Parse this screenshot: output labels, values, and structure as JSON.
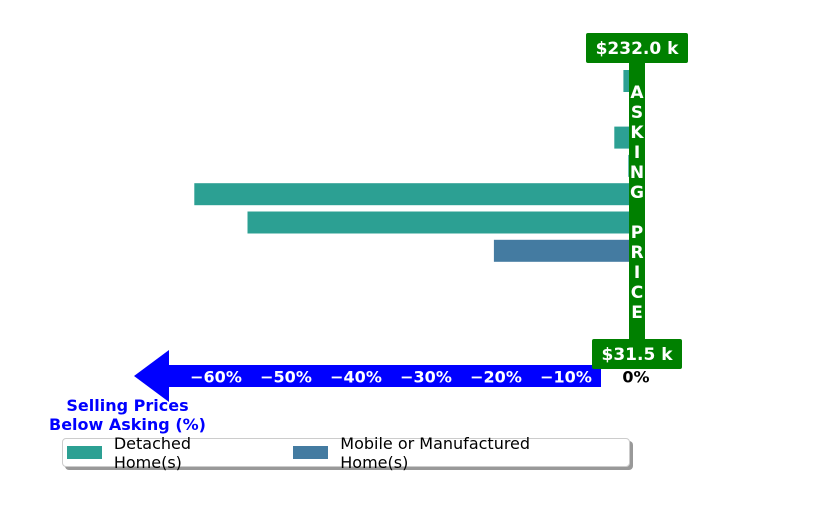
{
  "chart_data": {
    "type": "bar",
    "orientation": "horizontal",
    "title": "",
    "xlabel": "Selling Prices\nBelow Asking (%)",
    "xlim": [
      -0.67,
      0.0
    ],
    "xticks": [
      -0.6,
      -0.5,
      -0.4,
      -0.3,
      -0.2,
      -0.1,
      0.0
    ],
    "xtick_labels": [
      "−60%",
      "−50%",
      "−40%",
      "−30%",
      "−20%",
      "−10%",
      "0%"
    ],
    "grid": false,
    "legend_position": "bottom",
    "series": [
      {
        "name": "Detached Home(s)",
        "color": "#2ca093"
      },
      {
        "name": "Mobile or Manufactured Home(s)",
        "color": "#447ba1"
      }
    ],
    "bars": [
      {
        "series": 0,
        "value": -0.018
      },
      {
        "series": 0,
        "value": -0.004
      },
      {
        "series": 0,
        "value": -0.031
      },
      {
        "series": 0,
        "value": -0.011
      },
      {
        "series": 0,
        "value": -0.631
      },
      {
        "series": 0,
        "value": -0.555
      },
      {
        "series": 1,
        "value": -0.203
      }
    ],
    "annotations": {
      "max_price_label": "$232.0 k",
      "min_price_label": "$31.5 k",
      "vertical_banner": "ASKING PRICE"
    }
  },
  "colors": {
    "banner": "#008000",
    "arrow": "#0000ff",
    "axis_label": "#0000ff"
  }
}
